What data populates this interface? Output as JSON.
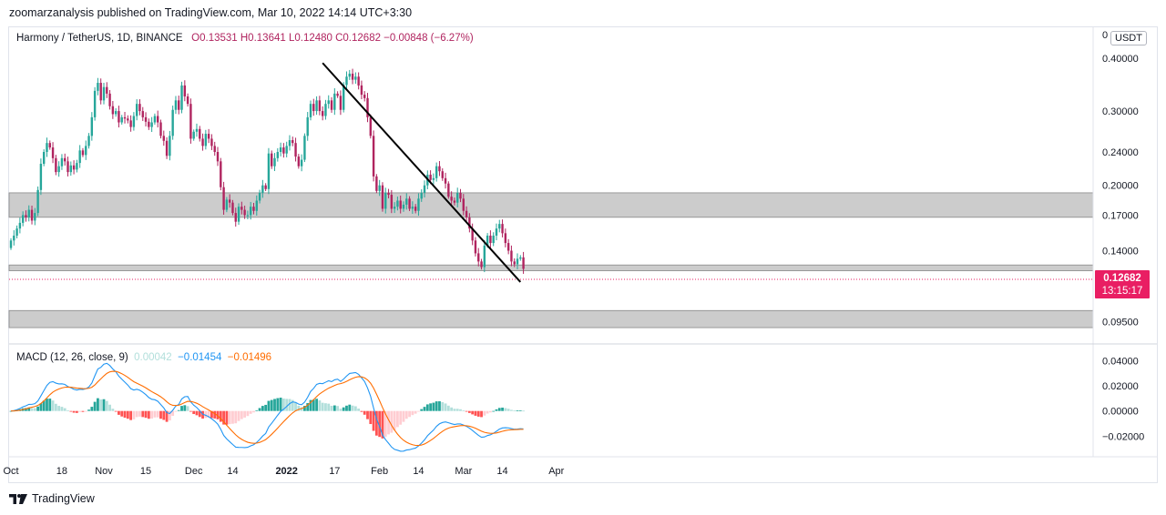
{
  "header": {
    "publisher": "zoomarzanalysis published on TradingView.com, Mar 10, 2022 14:14 UTC+3:30"
  },
  "legend": {
    "symbol": "Harmony / TetherUS, 1D, BINANCE",
    "ohlc": "O0.13531  H0.13641  L0.12480  C0.12682  −0.00848 (−6.27%)"
  },
  "currency_button": "USDT",
  "zero_clip_label": "0",
  "last_price": {
    "price": "0.12682",
    "countdown": "13:15:17",
    "color": "#e91e63"
  },
  "macd_legend": {
    "title": "MACD (12, 26, close, 9)",
    "histogram": "0.00042",
    "macd": "−0.01454",
    "signal": "−0.01496"
  },
  "footer": {
    "brand": "TradingView"
  },
  "colors": {
    "up": "#26a69a",
    "down": "#b0245f",
    "macd": "#2196f3",
    "signal": "#ff6d00",
    "zone": "#cccccc",
    "trendline": "#000000"
  },
  "chart_data": [
    {
      "type": "candlestick",
      "title": "Harmony / TetherUS, 1D, BINANCE",
      "y_scale": "log",
      "ylim": [
        0.085,
        0.46
      ],
      "y_ticks": [
        "0.40000",
        "0.30000",
        "0.24000",
        "0.20000",
        "0.17000",
        "0.14000",
        "0.09500"
      ],
      "x_ticks": [
        "Oct",
        "18",
        "Nov",
        "15",
        "Dec",
        "14",
        "2022",
        "17",
        "Feb",
        "14",
        "Mar",
        "14",
        "Apr"
      ],
      "start_date": "2021-10-01",
      "last_date": "2022-03-10",
      "closes": [
        0.148,
        0.152,
        0.158,
        0.163,
        0.17,
        0.168,
        0.175,
        0.165,
        0.172,
        0.195,
        0.225,
        0.24,
        0.252,
        0.246,
        0.232,
        0.215,
        0.222,
        0.232,
        0.228,
        0.215,
        0.223,
        0.218,
        0.226,
        0.242,
        0.236,
        0.248,
        0.262,
        0.29,
        0.335,
        0.35,
        0.318,
        0.342,
        0.33,
        0.308,
        0.295,
        0.3,
        0.282,
        0.29,
        0.288,
        0.285,
        0.275,
        0.292,
        0.312,
        0.3,
        0.29,
        0.283,
        0.275,
        0.282,
        0.292,
        0.282,
        0.262,
        0.255,
        0.235,
        0.262,
        0.302,
        0.318,
        0.302,
        0.345,
        0.325,
        0.312,
        0.258,
        0.268,
        0.272,
        0.258,
        0.248,
        0.265,
        0.258,
        0.248,
        0.24,
        0.228,
        0.198,
        0.175,
        0.185,
        0.182,
        0.172,
        0.164,
        0.178,
        0.175,
        0.17,
        0.17,
        0.178,
        0.174,
        0.184,
        0.192,
        0.2,
        0.196,
        0.238,
        0.222,
        0.232,
        0.24,
        0.246,
        0.238,
        0.248,
        0.256,
        0.252,
        0.234,
        0.222,
        0.23,
        0.262,
        0.29,
        0.312,
        0.3,
        0.318,
        0.3,
        0.292,
        0.312,
        0.318,
        0.302,
        0.33,
        0.326,
        0.302,
        0.346,
        0.362,
        0.368,
        0.356,
        0.362,
        0.345,
        0.328,
        0.322,
        0.29,
        0.262,
        0.21,
        0.194,
        0.2,
        0.176,
        0.192,
        0.19,
        0.176,
        0.178,
        0.184,
        0.176,
        0.18,
        0.186,
        0.176,
        0.178,
        0.174,
        0.186,
        0.192,
        0.2,
        0.212,
        0.206,
        0.208,
        0.222,
        0.216,
        0.208,
        0.202,
        0.188,
        0.184,
        0.182,
        0.192,
        0.186,
        0.174,
        0.168,
        0.158,
        0.148,
        0.138,
        0.132,
        0.128,
        0.144,
        0.152,
        0.146,
        0.152,
        0.158,
        0.162,
        0.154,
        0.146,
        0.14,
        0.132,
        0.13,
        0.134,
        0.135,
        0.1268
      ],
      "trendline": {
        "from_date": "2022-01-13",
        "from_price": 0.39,
        "to_date": "2022-03-20",
        "to_price": 0.118
      },
      "zones": [
        [
          0.168,
          0.192
        ],
        [
          0.1255,
          0.1295
        ],
        [
          0.092,
          0.101
        ]
      ]
    },
    {
      "type": "macd",
      "title": "MACD (12, 26, close, 9)",
      "ylim": [
        -0.032,
        0.046
      ],
      "y_ticks": [
        "0.04000",
        "0.02000",
        "0.00000",
        "−0.02000"
      ]
    }
  ]
}
